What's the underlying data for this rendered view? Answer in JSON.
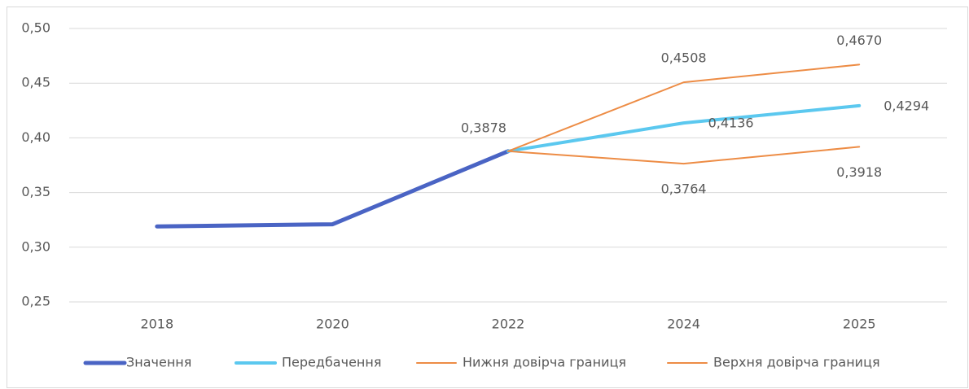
{
  "chart_data": {
    "type": "line",
    "categories": [
      "2018",
      "2020",
      "2022",
      "2024",
      "2025"
    ],
    "series": [
      {
        "name": "Значення",
        "color": "#4a64c4",
        "values": [
          0.319,
          0.321,
          0.3878,
          null,
          null
        ],
        "value_labels": [
          null,
          null,
          "0,3878",
          null,
          null
        ]
      },
      {
        "name": "Передбачення",
        "color": "#5bc8ef",
        "values": [
          null,
          null,
          0.3878,
          0.4136,
          0.4294
        ],
        "value_labels": [
          null,
          null,
          null,
          "0,4136",
          "0,4294"
        ]
      },
      {
        "name": "Нижня довірча границя",
        "color": "#ed8c45",
        "values": [
          null,
          null,
          0.3878,
          0.3764,
          0.3918
        ],
        "value_labels": [
          null,
          null,
          null,
          "0,3764",
          "0,3918"
        ]
      },
      {
        "name": "Верхня довірча границя",
        "color": "#ed8c45",
        "values": [
          null,
          null,
          0.3878,
          0.4508,
          0.467
        ],
        "value_labels": [
          null,
          null,
          null,
          "0,4508",
          "0,4670"
        ]
      }
    ],
    "ylim": [
      0.25,
      0.5
    ],
    "yticks": [
      {
        "value": 0.25,
        "label": "0,25"
      },
      {
        "value": 0.3,
        "label": "0,30"
      },
      {
        "value": 0.35,
        "label": "0,35"
      },
      {
        "value": 0.4,
        "label": "0,40"
      },
      {
        "value": 0.45,
        "label": "0,45"
      },
      {
        "value": 0.5,
        "label": "0,50"
      }
    ],
    "grid": true,
    "legend": "bottom"
  }
}
